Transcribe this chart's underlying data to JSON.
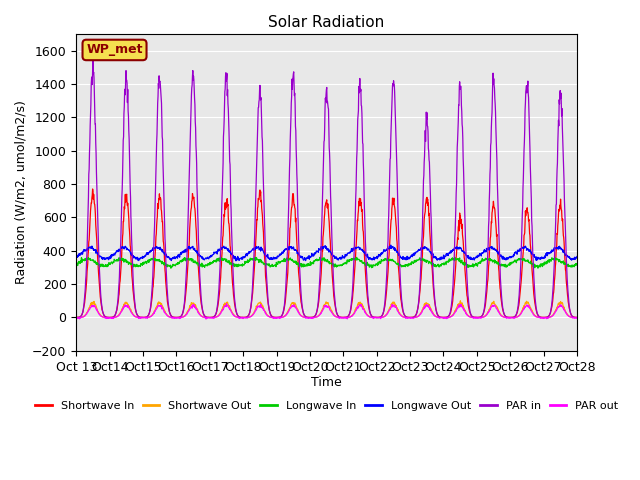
{
  "title": "Solar Radiation",
  "xlabel": "Time",
  "ylabel": "Radiation (W/m2, umol/m2/s)",
  "ylim": [
    -200,
    1700
  ],
  "yticks": [
    -200,
    0,
    200,
    400,
    600,
    800,
    1000,
    1200,
    1400,
    1600
  ],
  "x_tick_labels": [
    "Oct 13",
    "Oct 14",
    "Oct 15",
    "Oct 16",
    "Oct 17",
    "Oct 18",
    "Oct 19",
    "Oct 20",
    "Oct 21",
    "Oct 22",
    "Oct 23",
    "Oct 24",
    "Oct 25",
    "Oct 26",
    "Oct 27",
    "Oct 28"
  ],
  "n_days": 15,
  "shortwave_in_color": "#ff0000",
  "shortwave_out_color": "#ffa500",
  "longwave_in_color": "#00cc00",
  "longwave_out_color": "#0000ff",
  "par_in_color": "#9900cc",
  "par_out_color": "#ff00ff",
  "legend_labels": [
    "Shortwave In",
    "Shortwave Out",
    "Longwave In",
    "Longwave Out",
    "PAR in",
    "PAR out"
  ],
  "watermark_text": "WP_met",
  "plot_bg_color": "#e8e8e8",
  "grid_color": "#ffffff",
  "sw_in_peaks": [
    750,
    730,
    725,
    730,
    700,
    760,
    710,
    700,
    700,
    690,
    700,
    590,
    670,
    640,
    670
  ],
  "par_in_peaks": [
    1480,
    1450,
    1450,
    1460,
    1450,
    1350,
    1450,
    1360,
    1400,
    1410,
    1180,
    1370,
    1400,
    1400,
    1340
  ]
}
